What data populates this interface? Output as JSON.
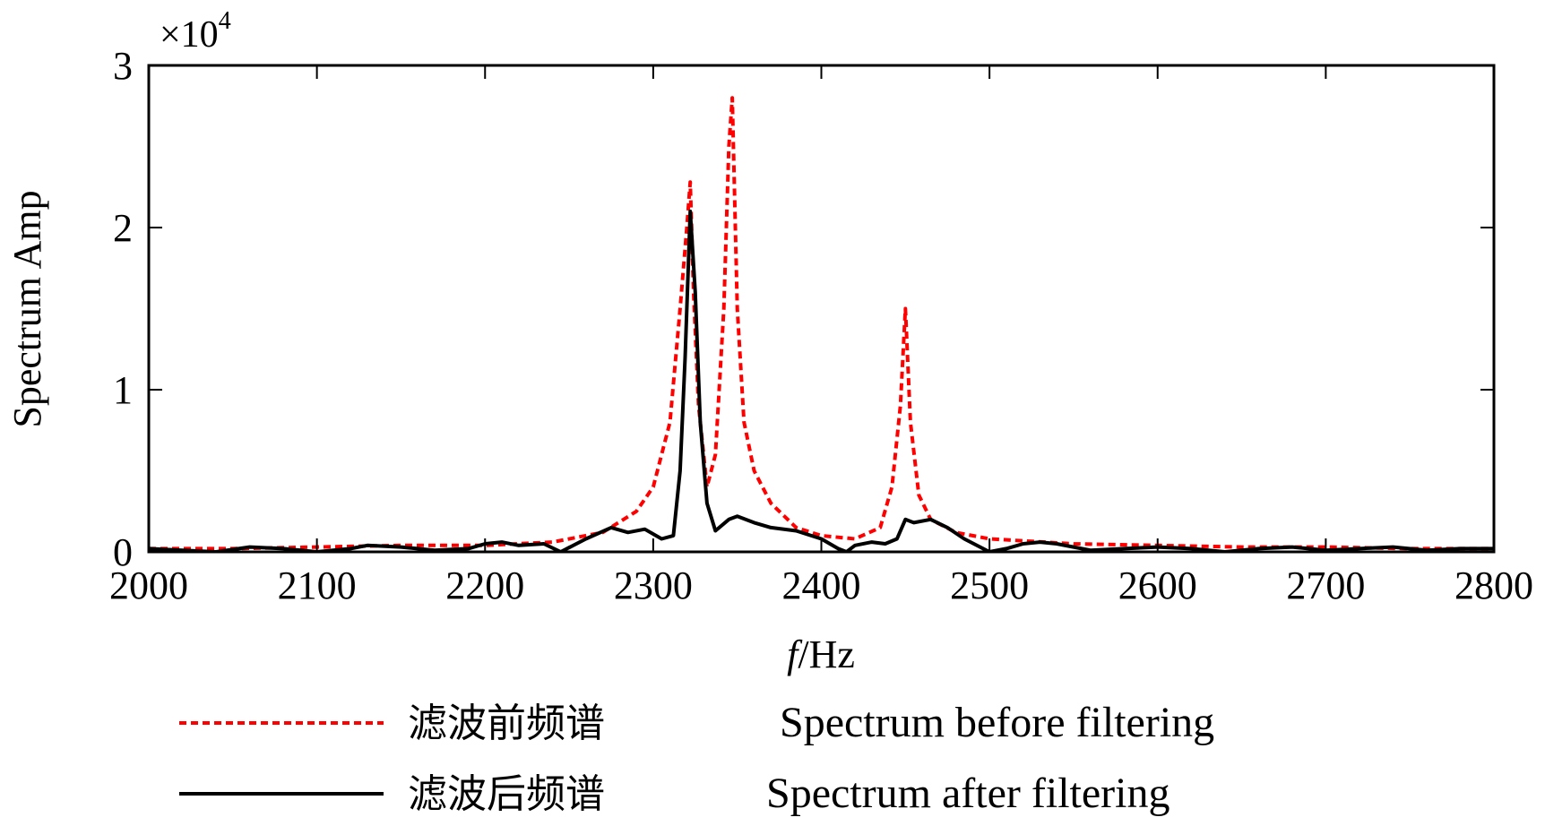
{
  "chart_data": {
    "type": "line",
    "title": "",
    "xlabel_italic": "f",
    "xlabel_rest": "/Hz",
    "ylabel": "Spectrum Amp",
    "y_multiplier_base": "×10",
    "y_multiplier_exp": "4",
    "xlim": [
      2000,
      2800
    ],
    "ylim": [
      0,
      3
    ],
    "x_ticks": [
      2000,
      2100,
      2200,
      2300,
      2400,
      2500,
      2600,
      2700,
      2800
    ],
    "y_ticks": [
      0,
      1,
      2,
      3
    ],
    "grid": false,
    "legend_position": "bottom-center",
    "series": [
      {
        "name": "Spectrum before filtering",
        "legend_cn": "滤波前频谱",
        "color": "#ff0000",
        "style": "dashed",
        "points": [
          [
            2000,
            0.02
          ],
          [
            2050,
            0.02
          ],
          [
            2100,
            0.03
          ],
          [
            2150,
            0.04
          ],
          [
            2200,
            0.04
          ],
          [
            2240,
            0.06
          ],
          [
            2270,
            0.12
          ],
          [
            2290,
            0.25
          ],
          [
            2300,
            0.4
          ],
          [
            2310,
            0.8
          ],
          [
            2316,
            1.5
          ],
          [
            2320,
            2.0
          ],
          [
            2322,
            2.28
          ],
          [
            2324,
            1.6
          ],
          [
            2327,
            0.9
          ],
          [
            2332,
            0.4
          ],
          [
            2337,
            0.6
          ],
          [
            2342,
            1.5
          ],
          [
            2345,
            2.5
          ],
          [
            2347,
            2.8
          ],
          [
            2350,
            1.5
          ],
          [
            2354,
            0.8
          ],
          [
            2360,
            0.5
          ],
          [
            2370,
            0.3
          ],
          [
            2385,
            0.15
          ],
          [
            2400,
            0.1
          ],
          [
            2420,
            0.08
          ],
          [
            2435,
            0.15
          ],
          [
            2442,
            0.4
          ],
          [
            2447,
            0.9
          ],
          [
            2450,
            1.5
          ],
          [
            2453,
            0.8
          ],
          [
            2458,
            0.35
          ],
          [
            2465,
            0.2
          ],
          [
            2480,
            0.12
          ],
          [
            2500,
            0.08
          ],
          [
            2550,
            0.05
          ],
          [
            2600,
            0.04
          ],
          [
            2650,
            0.03
          ],
          [
            2700,
            0.03
          ],
          [
            2750,
            0.02
          ],
          [
            2800,
            0.02
          ]
        ]
      },
      {
        "name": "Spectrum after filtering",
        "legend_cn": "滤波后频谱",
        "color": "#000000",
        "style": "solid",
        "points": [
          [
            2000,
            0.02
          ],
          [
            2020,
            0.01
          ],
          [
            2040,
            0.0
          ],
          [
            2060,
            0.03
          ],
          [
            2080,
            0.02
          ],
          [
            2100,
            0.0
          ],
          [
            2120,
            0.02
          ],
          [
            2130,
            0.04
          ],
          [
            2150,
            0.03
          ],
          [
            2170,
            0.01
          ],
          [
            2190,
            0.02
          ],
          [
            2200,
            0.05
          ],
          [
            2210,
            0.06
          ],
          [
            2220,
            0.04
          ],
          [
            2235,
            0.05
          ],
          [
            2245,
            0.0
          ],
          [
            2260,
            0.08
          ],
          [
            2275,
            0.15
          ],
          [
            2285,
            0.12
          ],
          [
            2295,
            0.14
          ],
          [
            2305,
            0.08
          ],
          [
            2312,
            0.1
          ],
          [
            2316,
            0.5
          ],
          [
            2319,
            1.2
          ],
          [
            2322,
            2.1
          ],
          [
            2325,
            1.6
          ],
          [
            2328,
            0.8
          ],
          [
            2332,
            0.3
          ],
          [
            2337,
            0.13
          ],
          [
            2345,
            0.2
          ],
          [
            2350,
            0.22
          ],
          [
            2360,
            0.18
          ],
          [
            2370,
            0.15
          ],
          [
            2385,
            0.13
          ],
          [
            2400,
            0.08
          ],
          [
            2410,
            0.02
          ],
          [
            2415,
            0.0
          ],
          [
            2420,
            0.04
          ],
          [
            2430,
            0.06
          ],
          [
            2438,
            0.05
          ],
          [
            2445,
            0.08
          ],
          [
            2450,
            0.2
          ],
          [
            2455,
            0.18
          ],
          [
            2465,
            0.2
          ],
          [
            2475,
            0.15
          ],
          [
            2485,
            0.08
          ],
          [
            2500,
            0.0
          ],
          [
            2510,
            0.02
          ],
          [
            2520,
            0.05
          ],
          [
            2530,
            0.06
          ],
          [
            2540,
            0.05
          ],
          [
            2550,
            0.03
          ],
          [
            2560,
            0.01
          ],
          [
            2580,
            0.02
          ],
          [
            2600,
            0.03
          ],
          [
            2620,
            0.02
          ],
          [
            2640,
            0.0
          ],
          [
            2660,
            0.02
          ],
          [
            2680,
            0.03
          ],
          [
            2700,
            0.01
          ],
          [
            2720,
            0.02
          ],
          [
            2740,
            0.03
          ],
          [
            2760,
            0.01
          ],
          [
            2780,
            0.02
          ],
          [
            2800,
            0.02
          ]
        ]
      }
    ]
  }
}
